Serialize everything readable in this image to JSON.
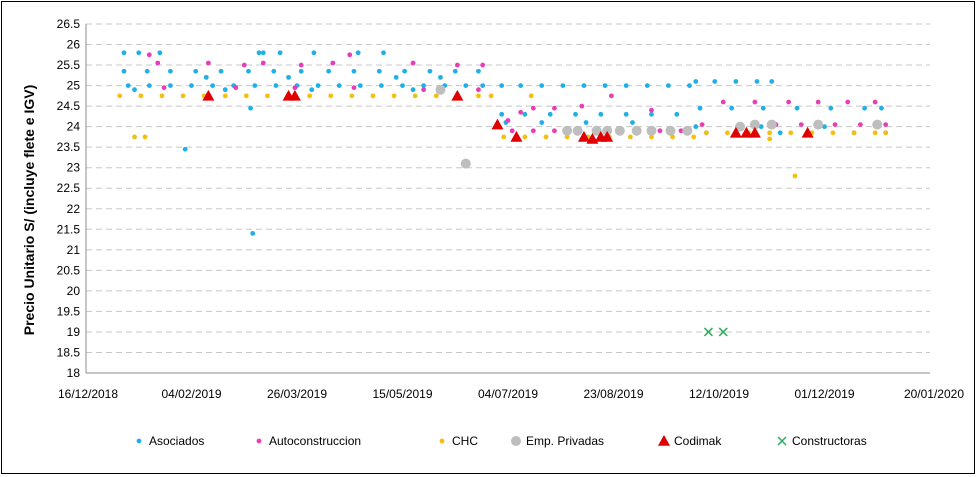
{
  "chart_data": {
    "type": "scatter",
    "title": "",
    "xlabel": "",
    "ylabel": "Precio Unitario S/ (incluye flete e IGV)",
    "x_axis": {
      "type": "date",
      "range": [
        "2018-12-16",
        "2020-01-20"
      ],
      "tick_labels": [
        "16/12/2018",
        "04/02/2019",
        "26/03/2019",
        "15/05/2019",
        "04/07/2019",
        "23/08/2019",
        "12/10/2019",
        "01/12/2019",
        "20/01/2020"
      ]
    },
    "y_axis": {
      "range": [
        18,
        26.5
      ],
      "step": 0.5,
      "tick_labels": [
        "18",
        "18.5",
        "19",
        "19.5",
        "20",
        "20.5",
        "21",
        "21.5",
        "22",
        "22.5",
        "23",
        "23.5",
        "24",
        "24.5",
        "25",
        "25.5",
        "26",
        "26.5"
      ]
    },
    "grid": "horizontal dashed",
    "legend_position": "bottom",
    "series": [
      {
        "name": "Asociados",
        "color": "#1FB0E6",
        "marker": "circle",
        "points": [
          {
            "x": "2019-01-03",
            "y": 25.8
          },
          {
            "x": "2019-01-10",
            "y": 25.8
          },
          {
            "x": "2019-01-20",
            "y": 25.8
          },
          {
            "x": "2019-03-08",
            "y": 25.8
          },
          {
            "x": "2019-03-10",
            "y": 25.8
          },
          {
            "x": "2019-03-18",
            "y": 25.8
          },
          {
            "x": "2019-04-03",
            "y": 25.8
          },
          {
            "x": "2019-04-24",
            "y": 25.8
          },
          {
            "x": "2019-05-06",
            "y": 25.8
          },
          {
            "x": "2019-01-03",
            "y": 25.35
          },
          {
            "x": "2019-01-14",
            "y": 25.35
          },
          {
            "x": "2019-01-25",
            "y": 25.35
          },
          {
            "x": "2019-02-06",
            "y": 25.35
          },
          {
            "x": "2019-02-18",
            "y": 25.35
          },
          {
            "x": "2019-03-03",
            "y": 25.35
          },
          {
            "x": "2019-03-15",
            "y": 25.35
          },
          {
            "x": "2019-03-28",
            "y": 25.35
          },
          {
            "x": "2019-04-10",
            "y": 25.35
          },
          {
            "x": "2019-04-22",
            "y": 25.35
          },
          {
            "x": "2019-05-04",
            "y": 25.35
          },
          {
            "x": "2019-05-16",
            "y": 25.35
          },
          {
            "x": "2019-05-28",
            "y": 25.35
          },
          {
            "x": "2019-06-09",
            "y": 25.35
          },
          {
            "x": "2019-06-20",
            "y": 25.35
          },
          {
            "x": "2019-02-11",
            "y": 25.2
          },
          {
            "x": "2019-03-22",
            "y": 25.2
          },
          {
            "x": "2019-05-12",
            "y": 25.2
          },
          {
            "x": "2019-06-02",
            "y": 25.2
          },
          {
            "x": "2019-01-05",
            "y": 25.0
          },
          {
            "x": "2019-01-15",
            "y": 25.0
          },
          {
            "x": "2019-01-25",
            "y": 25.0
          },
          {
            "x": "2019-02-04",
            "y": 25.0
          },
          {
            "x": "2019-02-14",
            "y": 25.0
          },
          {
            "x": "2019-02-24",
            "y": 25.0
          },
          {
            "x": "2019-03-06",
            "y": 25.0
          },
          {
            "x": "2019-03-16",
            "y": 25.0
          },
          {
            "x": "2019-03-26",
            "y": 25.0
          },
          {
            "x": "2019-04-05",
            "y": 25.0
          },
          {
            "x": "2019-04-15",
            "y": 25.0
          },
          {
            "x": "2019-04-25",
            "y": 25.0
          },
          {
            "x": "2019-05-05",
            "y": 25.0
          },
          {
            "x": "2019-05-15",
            "y": 25.0
          },
          {
            "x": "2019-05-25",
            "y": 25.0
          },
          {
            "x": "2019-06-04",
            "y": 25.0
          },
          {
            "x": "2019-06-14",
            "y": 25.0
          },
          {
            "x": "2019-06-22",
            "y": 25.0
          },
          {
            "x": "2019-01-08",
            "y": 24.9
          },
          {
            "x": "2019-02-20",
            "y": 24.9
          },
          {
            "x": "2019-04-02",
            "y": 24.9
          },
          {
            "x": "2019-05-20",
            "y": 24.9
          },
          {
            "x": "2019-07-01",
            "y": 25.0
          },
          {
            "x": "2019-07-10",
            "y": 25.0
          },
          {
            "x": "2019-07-20",
            "y": 25.0
          },
          {
            "x": "2019-07-30",
            "y": 25.0
          },
          {
            "x": "2019-08-09",
            "y": 25.0
          },
          {
            "x": "2019-08-19",
            "y": 25.0
          },
          {
            "x": "2019-08-29",
            "y": 25.0
          },
          {
            "x": "2019-09-08",
            "y": 25.0
          },
          {
            "x": "2019-09-18",
            "y": 25.0
          },
          {
            "x": "2019-09-28",
            "y": 25.0
          },
          {
            "x": "2019-07-01",
            "y": 24.3
          },
          {
            "x": "2019-07-12",
            "y": 24.3
          },
          {
            "x": "2019-07-24",
            "y": 24.3
          },
          {
            "x": "2019-08-05",
            "y": 24.3
          },
          {
            "x": "2019-08-17",
            "y": 24.3
          },
          {
            "x": "2019-08-29",
            "y": 24.3
          },
          {
            "x": "2019-09-10",
            "y": 24.3
          },
          {
            "x": "2019-09-22",
            "y": 24.3
          },
          {
            "x": "2019-07-03",
            "y": 24.1
          },
          {
            "x": "2019-07-20",
            "y": 24.1
          },
          {
            "x": "2019-08-10",
            "y": 24.1
          },
          {
            "x": "2019-09-01",
            "y": 24.1
          },
          {
            "x": "2019-10-01",
            "y": 25.1
          },
          {
            "x": "2019-10-10",
            "y": 25.1
          },
          {
            "x": "2019-10-20",
            "y": 25.1
          },
          {
            "x": "2019-10-30",
            "y": 25.1
          },
          {
            "x": "2019-11-06",
            "y": 25.1
          },
          {
            "x": "2019-10-03",
            "y": 24.45
          },
          {
            "x": "2019-10-18",
            "y": 24.45
          },
          {
            "x": "2019-11-02",
            "y": 24.45
          },
          {
            "x": "2019-11-18",
            "y": 24.45
          },
          {
            "x": "2019-12-04",
            "y": 24.45
          },
          {
            "x": "2019-12-20",
            "y": 24.45
          },
          {
            "x": "2019-12-28",
            "y": 24.45
          },
          {
            "x": "2019-10-01",
            "y": 24.0
          },
          {
            "x": "2019-11-01",
            "y": 24.0
          },
          {
            "x": "2019-12-01",
            "y": 24.0
          },
          {
            "x": "2019-10-06",
            "y": 23.85
          },
          {
            "x": "2019-11-10",
            "y": 23.85
          },
          {
            "x": "2019-12-15",
            "y": 23.85
          },
          {
            "x": "2019-12-30",
            "y": 23.85
          },
          {
            "x": "2019-02-01",
            "y": 23.45
          },
          {
            "x": "2019-03-04",
            "y": 24.45
          },
          {
            "x": "2019-03-05",
            "y": 21.4
          }
        ]
      },
      {
        "name": "Autoconstruccion",
        "color": "#E83DB8",
        "marker": "circle",
        "points": [
          {
            "x": "2019-01-15",
            "y": 25.75
          },
          {
            "x": "2019-01-19",
            "y": 25.55
          },
          {
            "x": "2019-02-12",
            "y": 25.55
          },
          {
            "x": "2019-03-01",
            "y": 25.5
          },
          {
            "x": "2019-03-10",
            "y": 25.55
          },
          {
            "x": "2019-03-28",
            "y": 25.5
          },
          {
            "x": "2019-04-12",
            "y": 25.55
          },
          {
            "x": "2019-04-20",
            "y": 25.75
          },
          {
            "x": "2019-05-20",
            "y": 25.55
          },
          {
            "x": "2019-06-10",
            "y": 25.5
          },
          {
            "x": "2019-06-22",
            "y": 25.5
          },
          {
            "x": "2019-01-22",
            "y": 24.95
          },
          {
            "x": "2019-02-25",
            "y": 24.95
          },
          {
            "x": "2019-03-25",
            "y": 24.95
          },
          {
            "x": "2019-04-22",
            "y": 24.95
          },
          {
            "x": "2019-05-25",
            "y": 24.9
          },
          {
            "x": "2019-06-20",
            "y": 24.9
          },
          {
            "x": "2019-07-04",
            "y": 24.15
          },
          {
            "x": "2019-07-10",
            "y": 24.35
          },
          {
            "x": "2019-07-16",
            "y": 24.45
          },
          {
            "x": "2019-07-26",
            "y": 24.45
          },
          {
            "x": "2019-08-08",
            "y": 24.5
          },
          {
            "x": "2019-08-22",
            "y": 24.75
          },
          {
            "x": "2019-09-10",
            "y": 24.4
          },
          {
            "x": "2019-07-06",
            "y": 23.9
          },
          {
            "x": "2019-07-16",
            "y": 23.9
          },
          {
            "x": "2019-07-26",
            "y": 23.9
          },
          {
            "x": "2019-08-05",
            "y": 23.9
          },
          {
            "x": "2019-08-15",
            "y": 23.9
          },
          {
            "x": "2019-08-25",
            "y": 23.9
          },
          {
            "x": "2019-09-04",
            "y": 23.9
          },
          {
            "x": "2019-09-14",
            "y": 23.9
          },
          {
            "x": "2019-09-24",
            "y": 23.9
          },
          {
            "x": "2019-10-04",
            "y": 24.05
          },
          {
            "x": "2019-10-14",
            "y": 24.6
          },
          {
            "x": "2019-10-22",
            "y": 24.05
          },
          {
            "x": "2019-10-29",
            "y": 24.6
          },
          {
            "x": "2019-11-08",
            "y": 24.05
          },
          {
            "x": "2019-11-14",
            "y": 24.6
          },
          {
            "x": "2019-11-20",
            "y": 24.05
          },
          {
            "x": "2019-11-28",
            "y": 24.6
          },
          {
            "x": "2019-12-06",
            "y": 24.05
          },
          {
            "x": "2019-12-12",
            "y": 24.6
          },
          {
            "x": "2019-12-18",
            "y": 24.05
          },
          {
            "x": "2019-12-25",
            "y": 24.6
          },
          {
            "x": "2019-12-30",
            "y": 24.05
          }
        ]
      },
      {
        "name": "CHC",
        "color": "#F5BE10",
        "marker": "circle",
        "points": [
          {
            "x": "2019-01-01",
            "y": 24.75
          },
          {
            "x": "2019-01-11",
            "y": 24.75
          },
          {
            "x": "2019-01-21",
            "y": 24.75
          },
          {
            "x": "2019-01-31",
            "y": 24.75
          },
          {
            "x": "2019-02-10",
            "y": 24.75
          },
          {
            "x": "2019-02-20",
            "y": 24.75
          },
          {
            "x": "2019-03-02",
            "y": 24.75
          },
          {
            "x": "2019-03-12",
            "y": 24.75
          },
          {
            "x": "2019-03-22",
            "y": 24.75
          },
          {
            "x": "2019-04-01",
            "y": 24.75
          },
          {
            "x": "2019-04-11",
            "y": 24.75
          },
          {
            "x": "2019-04-21",
            "y": 24.75
          },
          {
            "x": "2019-05-01",
            "y": 24.75
          },
          {
            "x": "2019-05-11",
            "y": 24.75
          },
          {
            "x": "2019-05-21",
            "y": 24.75
          },
          {
            "x": "2019-05-31",
            "y": 24.75
          },
          {
            "x": "2019-06-10",
            "y": 24.75
          },
          {
            "x": "2019-06-20",
            "y": 24.75
          },
          {
            "x": "2019-06-26",
            "y": 24.75
          },
          {
            "x": "2019-01-08",
            "y": 23.75
          },
          {
            "x": "2019-01-13",
            "y": 23.75
          },
          {
            "x": "2019-07-02",
            "y": 23.75
          },
          {
            "x": "2019-07-12",
            "y": 23.75
          },
          {
            "x": "2019-07-22",
            "y": 23.75
          },
          {
            "x": "2019-08-01",
            "y": 23.75
          },
          {
            "x": "2019-08-11",
            "y": 23.75
          },
          {
            "x": "2019-08-21",
            "y": 23.75
          },
          {
            "x": "2019-08-31",
            "y": 23.75
          },
          {
            "x": "2019-09-10",
            "y": 23.75
          },
          {
            "x": "2019-09-20",
            "y": 23.75
          },
          {
            "x": "2019-09-30",
            "y": 23.75
          },
          {
            "x": "2019-07-15",
            "y": 24.75
          },
          {
            "x": "2019-10-06",
            "y": 23.85
          },
          {
            "x": "2019-10-16",
            "y": 23.85
          },
          {
            "x": "2019-10-26",
            "y": 23.85
          },
          {
            "x": "2019-11-05",
            "y": 23.85
          },
          {
            "x": "2019-11-15",
            "y": 23.85
          },
          {
            "x": "2019-11-25",
            "y": 23.85
          },
          {
            "x": "2019-12-05",
            "y": 23.85
          },
          {
            "x": "2019-12-15",
            "y": 23.85
          },
          {
            "x": "2019-12-25",
            "y": 23.85
          },
          {
            "x": "2019-12-30",
            "y": 23.85
          },
          {
            "x": "2019-11-05",
            "y": 23.7
          },
          {
            "x": "2019-11-17",
            "y": 22.8
          }
        ]
      },
      {
        "name": "Emp. Privadas",
        "color": "#BEBEBE",
        "marker": "circle-large",
        "points": [
          {
            "x": "2019-06-02",
            "y": 24.9
          },
          {
            "x": "2019-06-14",
            "y": 23.1
          },
          {
            "x": "2019-08-01",
            "y": 23.9
          },
          {
            "x": "2019-08-06",
            "y": 23.9
          },
          {
            "x": "2019-08-15",
            "y": 23.9
          },
          {
            "x": "2019-08-20",
            "y": 23.9
          },
          {
            "x": "2019-08-26",
            "y": 23.9
          },
          {
            "x": "2019-09-03",
            "y": 23.9
          },
          {
            "x": "2019-09-10",
            "y": 23.9
          },
          {
            "x": "2019-09-19",
            "y": 23.9
          },
          {
            "x": "2019-09-27",
            "y": 23.9
          },
          {
            "x": "2019-10-22",
            "y": 24.0
          },
          {
            "x": "2019-10-29",
            "y": 24.05
          },
          {
            "x": "2019-11-06",
            "y": 24.05
          },
          {
            "x": "2019-11-28",
            "y": 24.05
          },
          {
            "x": "2019-12-26",
            "y": 24.05
          }
        ]
      },
      {
        "name": "Codimak",
        "color": "#E00000",
        "marker": "triangle",
        "points": [
          {
            "x": "2019-02-12",
            "y": 24.75
          },
          {
            "x": "2019-03-22",
            "y": 24.75
          },
          {
            "x": "2019-03-25",
            "y": 24.75
          },
          {
            "x": "2019-06-10",
            "y": 24.75
          },
          {
            "x": "2019-06-29",
            "y": 24.05
          },
          {
            "x": "2019-07-08",
            "y": 23.75
          },
          {
            "x": "2019-08-09",
            "y": 23.75
          },
          {
            "x": "2019-08-13",
            "y": 23.7
          },
          {
            "x": "2019-08-17",
            "y": 23.75
          },
          {
            "x": "2019-08-20",
            "y": 23.75
          },
          {
            "x": "2019-10-20",
            "y": 23.85
          },
          {
            "x": "2019-10-25",
            "y": 23.85
          },
          {
            "x": "2019-10-29",
            "y": 23.85
          },
          {
            "x": "2019-11-23",
            "y": 23.85
          }
        ]
      },
      {
        "name": "Constructoras",
        "color": "#2EAD5C",
        "marker": "x",
        "points": [
          {
            "x": "2019-10-07",
            "y": 19.0
          },
          {
            "x": "2019-10-14",
            "y": 19.0
          }
        ]
      }
    ]
  }
}
